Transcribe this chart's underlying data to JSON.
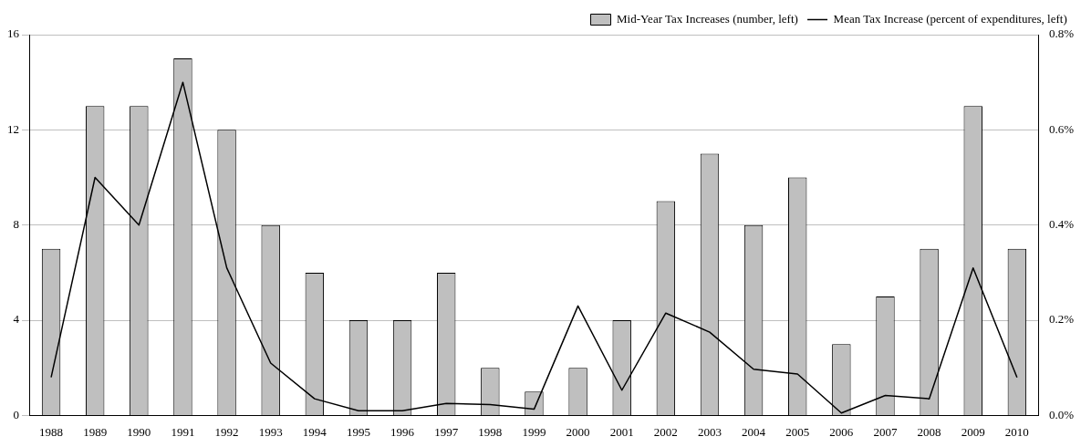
{
  "chart_data": {
    "type": "bar",
    "categories": [
      "1988",
      "1989",
      "1990",
      "1991",
      "1992",
      "1993",
      "1994",
      "1995",
      "1996",
      "1997",
      "1998",
      "1999",
      "2000",
      "2001",
      "2002",
      "2003",
      "2004",
      "2005",
      "2006",
      "2007",
      "2008",
      "2009",
      "2010"
    ],
    "series": [
      {
        "name": "Mid-Year Tax Increases (number, left)",
        "type": "bar",
        "color": "#bfbfbf",
        "values": [
          7,
          13,
          13,
          15,
          12,
          8,
          6,
          4,
          4,
          6,
          2,
          1,
          2,
          4,
          9,
          11,
          8,
          10,
          3,
          5,
          7,
          13,
          7
        ]
      },
      {
        "name": "Mean Tax Increase (percent of expenditures, left)",
        "type": "line",
        "axis": "y2",
        "color": "#000000",
        "values": [
          0.08,
          0.5,
          0.4,
          0.7,
          0.31,
          0.11,
          0.035,
          0.01,
          0.01,
          0.025,
          0.023,
          0.013,
          0.23,
          0.053,
          0.215,
          0.175,
          0.097,
          0.087,
          0.005,
          0.042,
          0.035,
          0.31,
          0.08
        ]
      }
    ],
    "ylim": [
      0,
      16
    ],
    "yticks": [
      0,
      4,
      8,
      12,
      16
    ],
    "y2lim": [
      0,
      0.8
    ],
    "y2ticks": [
      {
        "value": 0,
        "label": "0.0%"
      },
      {
        "value": 0.2,
        "label": "0.2%"
      },
      {
        "value": 0.4,
        "label": "0.4%"
      },
      {
        "value": 0.6,
        "label": "0.6%"
      },
      {
        "value": 0.8,
        "label": "0.8%"
      }
    ],
    "grid": "y",
    "legend": "top right",
    "marker": "none",
    "line_style": "solid"
  }
}
